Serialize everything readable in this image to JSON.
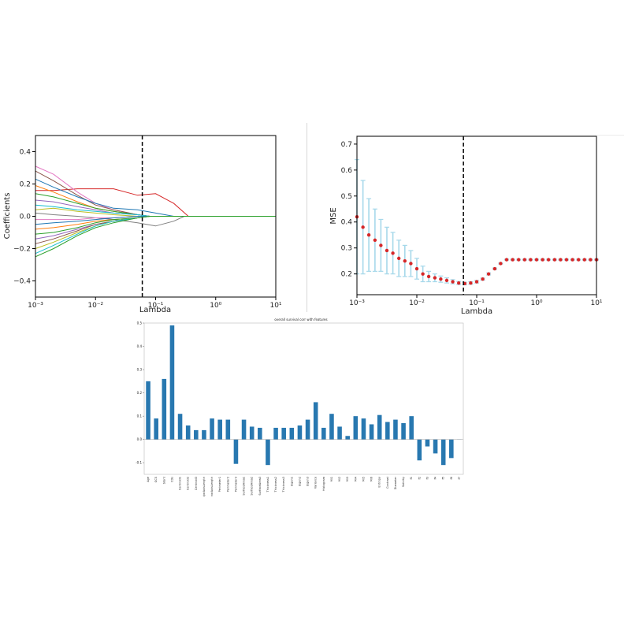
{
  "chart_data": [
    {
      "type": "line",
      "xlabel": "Lambda",
      "ylabel": "Coefficients",
      "xscale": "log",
      "xlim": [
        0.001,
        10
      ],
      "ylim": [
        -0.5,
        0.5
      ],
      "xticks": [
        {
          "value": 0.001,
          "label": "10⁻³"
        },
        {
          "value": 0.01,
          "label": "10⁻²"
        },
        {
          "value": 0.1,
          "label": "10⁻¹"
        },
        {
          "value": 1,
          "label": "10⁰"
        },
        {
          "value": 10,
          "label": "10¹"
        }
      ],
      "yticks": [
        {
          "value": 0.4,
          "label": "0.4"
        },
        {
          "value": 0.2,
          "label": "0.2"
        },
        {
          "value": 0.0,
          "label": "0.0"
        },
        {
          "value": -0.2,
          "label": "−0.2"
        },
        {
          "value": -0.4,
          "label": "−0.4"
        }
      ],
      "vline": 0.06,
      "grid": false,
      "legend": "none",
      "series": [
        {
          "color": "#d62728",
          "x": [
            0.001,
            0.002,
            0.005,
            0.01,
            0.02,
            0.05,
            0.1,
            0.2,
            0.35,
            1,
            10
          ],
          "y": [
            0.16,
            0.16,
            0.17,
            0.17,
            0.17,
            0.13,
            0.14,
            0.08,
            0.0,
            0.0,
            0.0
          ]
        },
        {
          "color": "#e377c2",
          "x": [
            0.001,
            0.002,
            0.005,
            0.01,
            0.02,
            0.05,
            0.08,
            0.2,
            10
          ],
          "y": [
            0.31,
            0.26,
            0.15,
            0.08,
            0.04,
            0.01,
            0.0,
            0.0,
            0.0
          ]
        },
        {
          "color": "#8c564b",
          "x": [
            0.001,
            0.002,
            0.005,
            0.01,
            0.02,
            0.05,
            0.08,
            0.2,
            10
          ],
          "y": [
            0.28,
            0.22,
            0.13,
            0.07,
            0.04,
            0.01,
            0.0,
            0.0,
            0.0
          ]
        },
        {
          "color": "#1f77b4",
          "x": [
            0.001,
            0.002,
            0.005,
            0.01,
            0.02,
            0.05,
            0.1,
            0.2,
            10
          ],
          "y": [
            0.23,
            0.18,
            0.12,
            0.08,
            0.05,
            0.04,
            0.02,
            0.0,
            0.0
          ]
        },
        {
          "color": "#ff7f0e",
          "x": [
            0.001,
            0.002,
            0.005,
            0.01,
            0.02,
            0.05,
            0.08,
            0.2,
            10
          ],
          "y": [
            0.19,
            0.15,
            0.09,
            0.05,
            0.03,
            0.01,
            0.0,
            0.0,
            0.0
          ]
        },
        {
          "color": "#2ca02c",
          "x": [
            0.001,
            0.002,
            0.005,
            0.01,
            0.02,
            0.05,
            0.08,
            0.2,
            10
          ],
          "y": [
            0.14,
            0.12,
            0.08,
            0.05,
            0.03,
            0.01,
            0.0,
            0.0,
            0.0
          ]
        },
        {
          "color": "#9467bd",
          "x": [
            0.001,
            0.002,
            0.005,
            0.01,
            0.02,
            0.05,
            0.08,
            0.2,
            10
          ],
          "y": [
            0.1,
            0.09,
            0.06,
            0.04,
            0.02,
            0.01,
            0.0,
            0.0,
            0.0
          ]
        },
        {
          "color": "#17becf",
          "x": [
            0.001,
            0.002,
            0.005,
            0.01,
            0.02,
            0.05,
            0.08,
            0.2,
            10
          ],
          "y": [
            0.07,
            0.06,
            0.04,
            0.03,
            0.02,
            0.01,
            0.0,
            0.0,
            0.0
          ]
        },
        {
          "color": "#bcbd22",
          "x": [
            0.001,
            0.002,
            0.005,
            0.01,
            0.02,
            0.05,
            0.08,
            0.2,
            10
          ],
          "y": [
            0.04,
            0.05,
            0.03,
            0.02,
            0.01,
            0.0,
            0.0,
            0.0,
            0.0
          ]
        },
        {
          "color": "#7f7f7f",
          "x": [
            0.001,
            0.002,
            0.005,
            0.01,
            0.02,
            0.05,
            0.1,
            0.2,
            0.3,
            10
          ],
          "y": [
            0.02,
            0.01,
            0.0,
            -0.01,
            -0.02,
            -0.04,
            -0.06,
            -0.03,
            0.0,
            0.0
          ]
        },
        {
          "color": "#e377c2",
          "x": [
            0.001,
            0.002,
            0.005,
            0.01,
            0.02,
            0.05,
            0.08,
            0.2,
            10
          ],
          "y": [
            -0.02,
            -0.02,
            -0.02,
            -0.01,
            -0.01,
            0.0,
            0.0,
            0.0,
            0.0
          ]
        },
        {
          "color": "#1f77b4",
          "x": [
            0.001,
            0.002,
            0.005,
            0.01,
            0.02,
            0.05,
            0.08,
            0.2,
            10
          ],
          "y": [
            -0.05,
            -0.04,
            -0.03,
            -0.02,
            -0.01,
            0.0,
            0.0,
            0.0,
            0.0
          ]
        },
        {
          "color": "#ff7f0e",
          "x": [
            0.001,
            0.002,
            0.005,
            0.01,
            0.02,
            0.05,
            0.08,
            0.2,
            10
          ],
          "y": [
            -0.08,
            -0.07,
            -0.05,
            -0.03,
            -0.02,
            -0.01,
            0.0,
            0.0,
            0.0
          ]
        },
        {
          "color": "#2ca02c",
          "x": [
            0.001,
            0.002,
            0.005,
            0.01,
            0.02,
            0.05,
            0.08,
            0.2,
            10
          ],
          "y": [
            -0.11,
            -0.1,
            -0.07,
            -0.04,
            -0.02,
            -0.01,
            0.0,
            0.0,
            0.0
          ]
        },
        {
          "color": "#9467bd",
          "x": [
            0.001,
            0.002,
            0.005,
            0.01,
            0.02,
            0.05,
            0.08,
            0.2,
            10
          ],
          "y": [
            -0.14,
            -0.12,
            -0.08,
            -0.05,
            -0.03,
            -0.01,
            0.0,
            0.0,
            0.0
          ]
        },
        {
          "color": "#8c564b",
          "x": [
            0.001,
            0.002,
            0.005,
            0.01,
            0.02,
            0.05,
            0.08,
            0.2,
            10
          ],
          "y": [
            -0.17,
            -0.14,
            -0.09,
            -0.05,
            -0.03,
            -0.01,
            0.0,
            0.0,
            0.0
          ]
        },
        {
          "color": "#bcbd22",
          "x": [
            0.001,
            0.002,
            0.005,
            0.01,
            0.02,
            0.05,
            0.08,
            0.2,
            10
          ],
          "y": [
            -0.2,
            -0.16,
            -0.1,
            -0.06,
            -0.03,
            -0.01,
            0.0,
            0.0,
            0.0
          ]
        },
        {
          "color": "#17becf",
          "x": [
            0.001,
            0.002,
            0.005,
            0.01,
            0.02,
            0.05,
            0.08,
            0.2,
            10
          ],
          "y": [
            -0.23,
            -0.18,
            -0.11,
            -0.06,
            -0.03,
            -0.01,
            0.0,
            0.0,
            0.0
          ]
        },
        {
          "color": "#2ca02c",
          "x": [
            0.001,
            0.002,
            0.005,
            0.01,
            0.02,
            0.05,
            0.08,
            0.2,
            10
          ],
          "y": [
            -0.25,
            -0.2,
            -0.12,
            -0.07,
            -0.04,
            -0.01,
            0.0,
            0.0,
            0.0
          ]
        }
      ]
    },
    {
      "type": "scatter",
      "xlabel": "Lambda",
      "ylabel": "MSE",
      "xscale": "log",
      "xlim": [
        0.001,
        10
      ],
      "ylim": [
        0.12,
        0.73
      ],
      "xticks": [
        {
          "value": 0.001,
          "label": "10⁻³"
        },
        {
          "value": 0.01,
          "label": "10⁻²"
        },
        {
          "value": 0.1,
          "label": "10⁻¹"
        },
        {
          "value": 1,
          "label": "10⁰"
        },
        {
          "value": 10,
          "label": "10¹"
        }
      ],
      "yticks": [
        {
          "value": 0.2,
          "label": "0.2"
        },
        {
          "value": 0.3,
          "label": "0.3"
        },
        {
          "value": 0.4,
          "label": "0.4"
        },
        {
          "value": 0.5,
          "label": "0.5"
        },
        {
          "value": 0.6,
          "label": "0.6"
        },
        {
          "value": 0.7,
          "label": "0.7"
        }
      ],
      "vline": 0.06,
      "grid": false,
      "legend": "none",
      "point_color": "#d62728",
      "errorbar_color": "#a6d8ea",
      "points": [
        {
          "x": 0.001,
          "y": 0.42,
          "err": 0.22
        },
        {
          "x": 0.00126,
          "y": 0.38,
          "err": 0.18
        },
        {
          "x": 0.00158,
          "y": 0.35,
          "err": 0.14
        },
        {
          "x": 0.002,
          "y": 0.33,
          "err": 0.12
        },
        {
          "x": 0.00251,
          "y": 0.31,
          "err": 0.1
        },
        {
          "x": 0.00316,
          "y": 0.29,
          "err": 0.09
        },
        {
          "x": 0.00398,
          "y": 0.28,
          "err": 0.08
        },
        {
          "x": 0.00501,
          "y": 0.26,
          "err": 0.07
        },
        {
          "x": 0.00631,
          "y": 0.25,
          "err": 0.06
        },
        {
          "x": 0.00794,
          "y": 0.24,
          "err": 0.05
        },
        {
          "x": 0.01,
          "y": 0.22,
          "err": 0.04
        },
        {
          "x": 0.0126,
          "y": 0.2,
          "err": 0.03
        },
        {
          "x": 0.0158,
          "y": 0.19,
          "err": 0.02
        },
        {
          "x": 0.02,
          "y": 0.185,
          "err": 0.015
        },
        {
          "x": 0.0251,
          "y": 0.18,
          "err": 0.012
        },
        {
          "x": 0.0316,
          "y": 0.175,
          "err": 0.01
        },
        {
          "x": 0.0398,
          "y": 0.17,
          "err": 0.008
        },
        {
          "x": 0.0501,
          "y": 0.165,
          "err": 0.006
        },
        {
          "x": 0.0631,
          "y": 0.163,
          "err": 0.005
        },
        {
          "x": 0.0794,
          "y": 0.165,
          "err": 0.005
        },
        {
          "x": 0.1,
          "y": 0.17,
          "err": 0.005
        },
        {
          "x": 0.126,
          "y": 0.18,
          "err": 0.004
        },
        {
          "x": 0.158,
          "y": 0.2,
          "err": 0.004
        },
        {
          "x": 0.2,
          "y": 0.22,
          "err": 0.003
        },
        {
          "x": 0.251,
          "y": 0.24,
          "err": 0.002
        },
        {
          "x": 0.316,
          "y": 0.255,
          "err": 0.002
        },
        {
          "x": 0.398,
          "y": 0.255,
          "err": 0.002
        },
        {
          "x": 0.501,
          "y": 0.255,
          "err": 0.002
        },
        {
          "x": 0.631,
          "y": 0.255,
          "err": 0.002
        },
        {
          "x": 0.794,
          "y": 0.255,
          "err": 0.002
        },
        {
          "x": 1.0,
          "y": 0.255,
          "err": 0.002
        },
        {
          "x": 1.26,
          "y": 0.255,
          "err": 0.002
        },
        {
          "x": 1.58,
          "y": 0.255,
          "err": 0.002
        },
        {
          "x": 2.0,
          "y": 0.255,
          "err": 0.002
        },
        {
          "x": 2.51,
          "y": 0.255,
          "err": 0.002
        },
        {
          "x": 3.16,
          "y": 0.255,
          "err": 0.002
        },
        {
          "x": 3.98,
          "y": 0.255,
          "err": 0.002
        },
        {
          "x": 5.01,
          "y": 0.255,
          "err": 0.002
        },
        {
          "x": 6.31,
          "y": 0.255,
          "err": 0.002
        },
        {
          "x": 7.94,
          "y": 0.255,
          "err": 0.002
        },
        {
          "x": 10.0,
          "y": 0.255,
          "err": 0.002
        }
      ]
    },
    {
      "type": "bar",
      "title": "overall survival corr with features",
      "color": "#2878b0",
      "ylim": [
        -0.15,
        0.5
      ],
      "yticks": [
        {
          "value": 0.5,
          "label": "0.5"
        },
        {
          "value": 0.4,
          "label": "0.4"
        },
        {
          "value": 0.3,
          "label": "0.3"
        },
        {
          "value": 0.2,
          "label": "0.2"
        },
        {
          "value": 0.1,
          "label": "0.1"
        },
        {
          "value": 0.0,
          "label": "0.0"
        },
        {
          "value": -0.1,
          "label": "-0.1"
        }
      ],
      "categories": [
        "Age",
        "GCS",
        "Stent",
        "CDs",
        "Centroid1",
        "Centroid2",
        "Centroid3",
        "MajorAxisLength",
        "MinorAxisLength",
        "Perimeter1",
        "Perimeter2",
        "Perimeter3",
        "SurfaceArea1",
        "SurfaceArea2",
        "SurfaceArea3",
        "Thickness1",
        "Thickness2",
        "Thickness3",
        "Eigen1",
        "Eigen2",
        "Eigen3",
        "Variance",
        "Histogram",
        "Mi1",
        "Mi2",
        "Mi3",
        "Mi4",
        "Mi5",
        "Mi6",
        "Entropy",
        "Contrast",
        "Diameter",
        "Solidity",
        "f1",
        "f2",
        "f3",
        "f4",
        "f5",
        "f6",
        "f7"
      ],
      "values": [
        0.25,
        0.09,
        0.26,
        0.49,
        0.11,
        0.06,
        0.04,
        0.04,
        0.09,
        0.085,
        0.085,
        -0.105,
        0.085,
        0.055,
        0.05,
        -0.11,
        0.05,
        0.05,
        0.05,
        0.06,
        0.085,
        0.16,
        0.05,
        0.11,
        0.055,
        0.015,
        0.1,
        0.09,
        0.065,
        0.105,
        0.075,
        0.085,
        0.07,
        0.1,
        -0.09,
        -0.03,
        -0.06,
        -0.11,
        -0.08,
        0.0
      ]
    }
  ]
}
